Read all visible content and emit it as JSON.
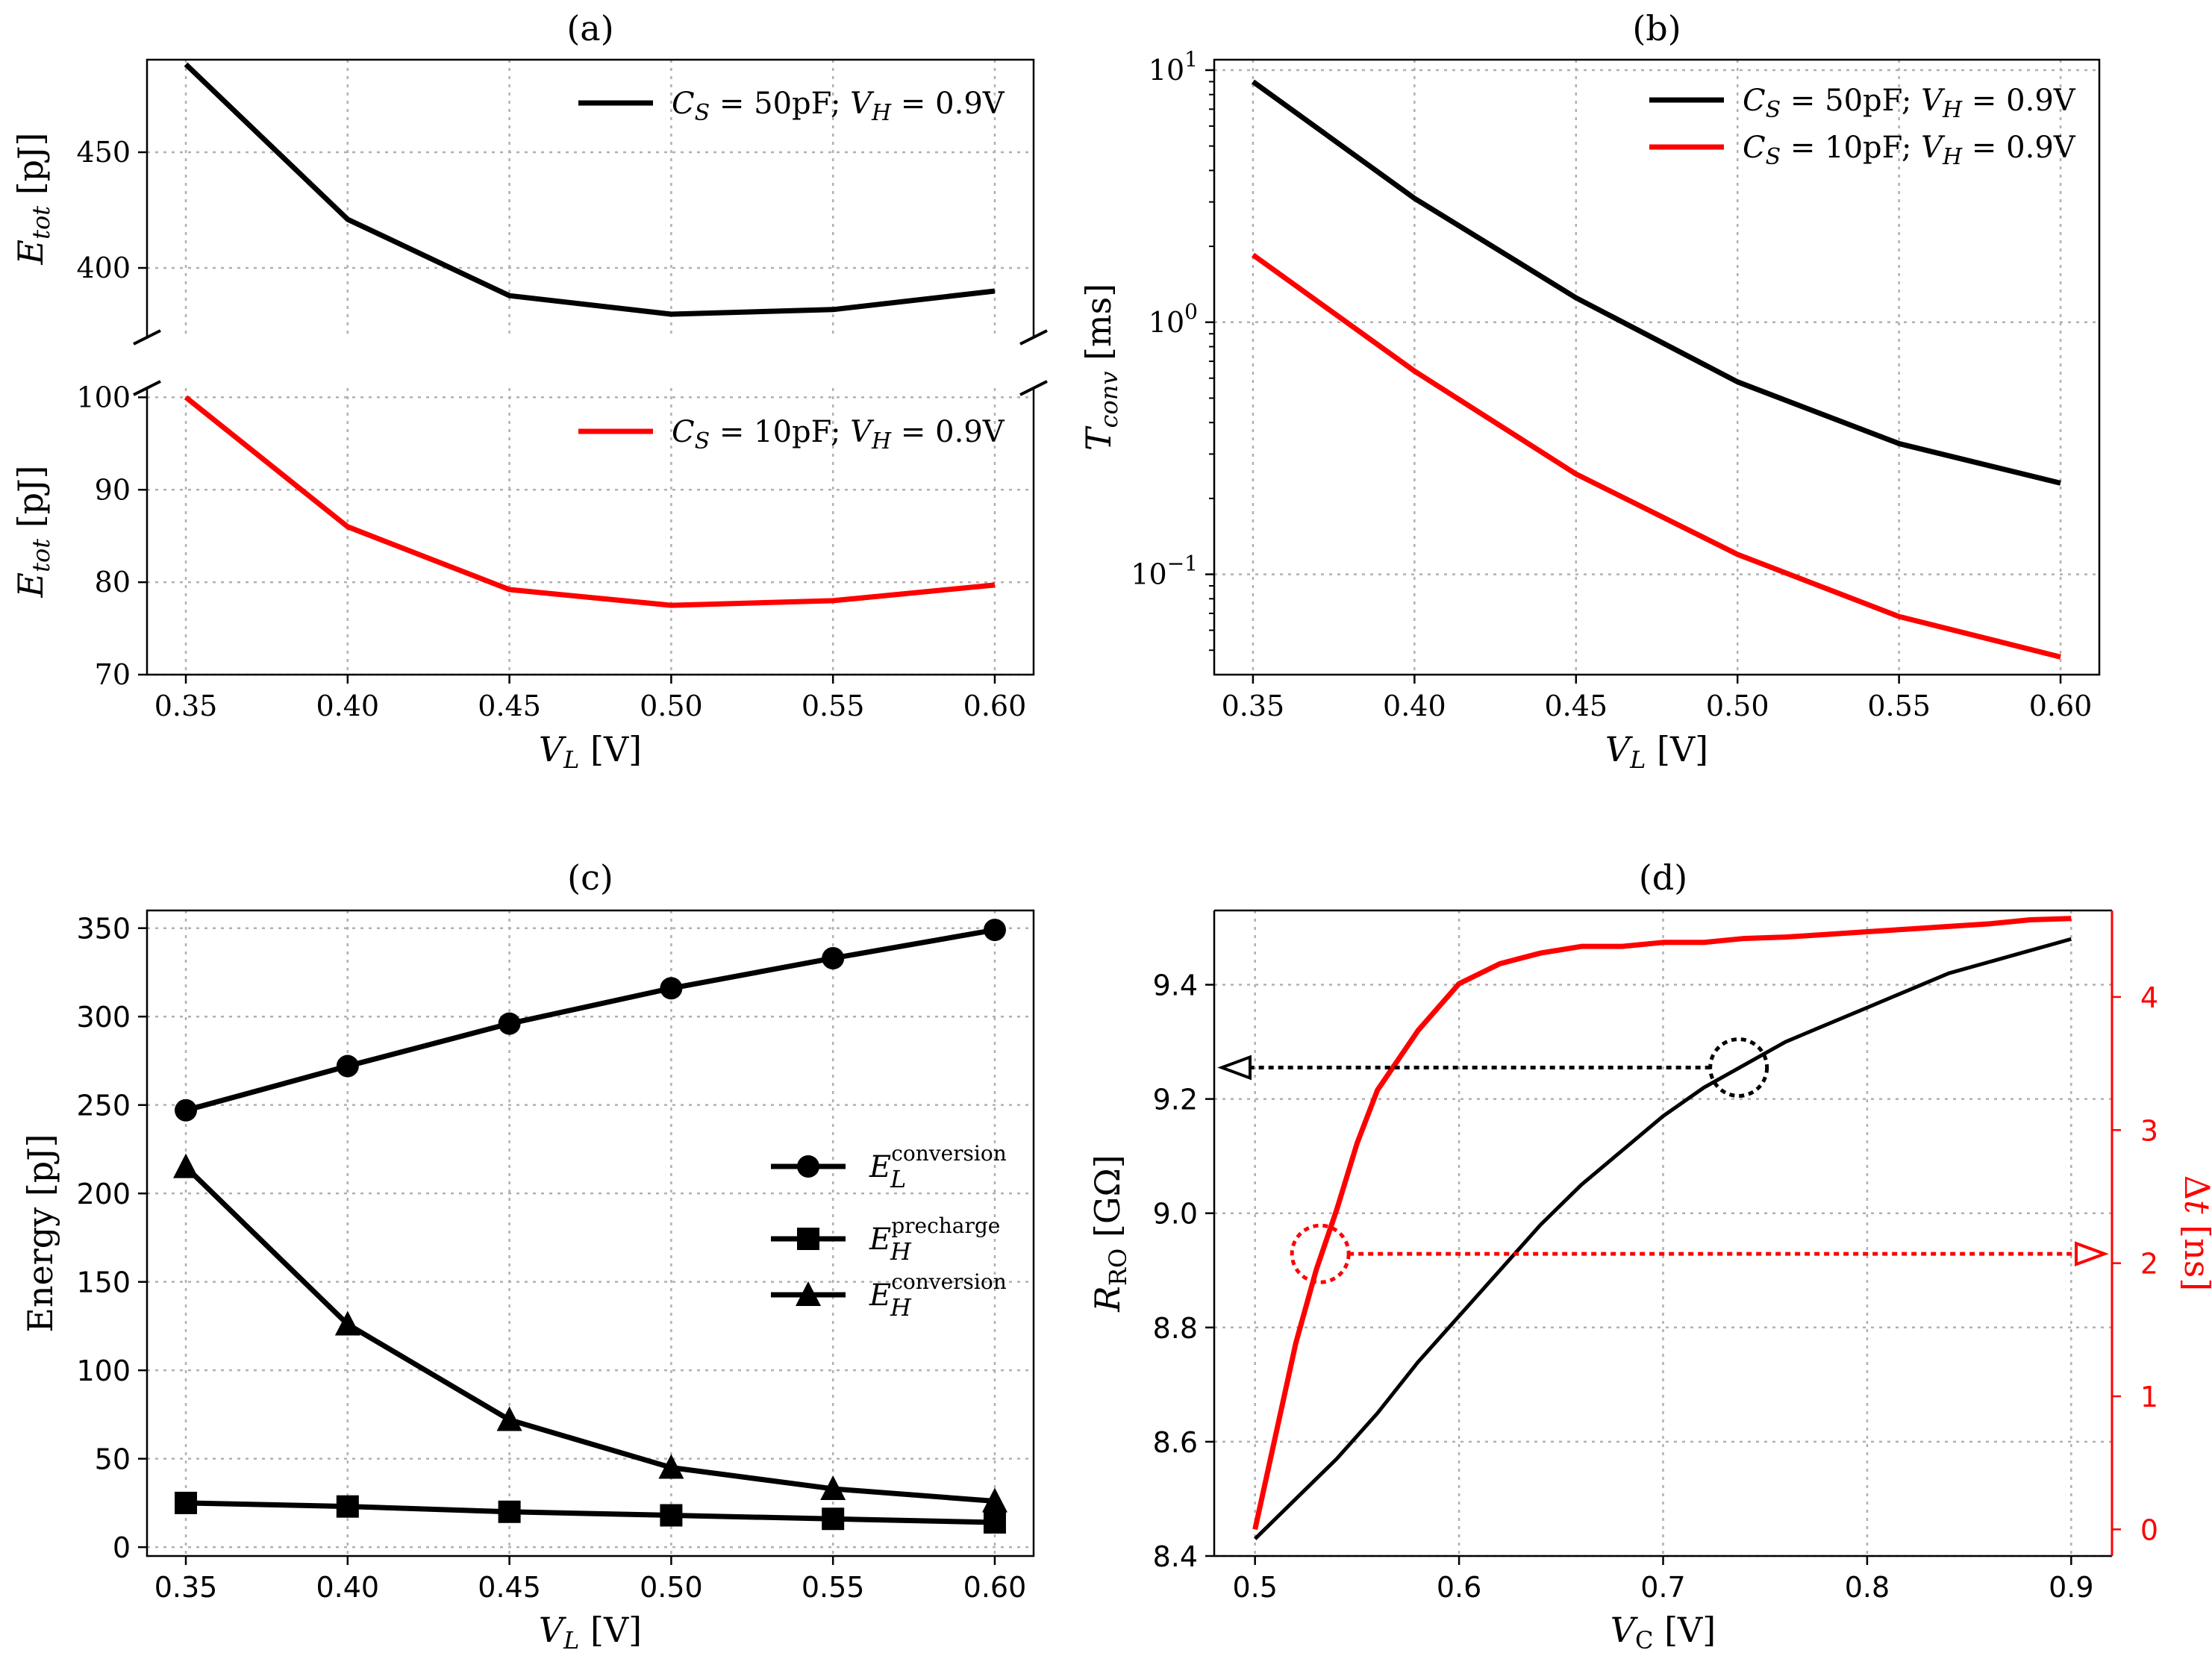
{
  "chart_data": [
    {
      "panel": "a",
      "type": "line",
      "title": "(a)",
      "xlabel": "V_L [V]",
      "x": [
        0.35,
        0.4,
        0.45,
        0.5,
        0.55,
        0.6
      ],
      "x_ticks": [
        "0.35",
        "0.40",
        "0.45",
        "0.50",
        "0.55",
        "0.60"
      ],
      "broken_axis": true,
      "upper": {
        "ylabel": "E_tot [pJ]",
        "ylim": [
          370,
          490
        ],
        "y_ticks": [
          400,
          450
        ],
        "series": [
          {
            "name": "C_S = 50pF; V_H = 0.9V",
            "color": "#000000",
            "values": [
              488,
              421,
              388,
              380,
              382,
              390
            ]
          }
        ]
      },
      "lower": {
        "ylabel": "E_tot [pJ]",
        "ylim": [
          70,
          101
        ],
        "y_ticks": [
          70,
          80,
          90,
          100
        ],
        "series": [
          {
            "name": "C_S = 10pF; V_H = 0.9V",
            "color": "#ff0000",
            "values": [
              100,
              86,
              79.2,
              77.5,
              78,
              79.7
            ]
          }
        ]
      }
    },
    {
      "panel": "b",
      "type": "line",
      "title": "(b)",
      "xlabel": "V_L [V]",
      "ylabel": "T_conv [ms]",
      "yscale": "log",
      "ylim": [
        0.04,
        11
      ],
      "x": [
        0.35,
        0.4,
        0.45,
        0.5,
        0.55,
        0.6
      ],
      "x_ticks": [
        "0.35",
        "0.40",
        "0.45",
        "0.50",
        "0.55",
        "0.60"
      ],
      "y_ticks": [
        {
          "value": 10,
          "base": "10",
          "exp": "1"
        },
        {
          "value": 1,
          "base": "10",
          "exp": "0"
        },
        {
          "value": 0.1,
          "base": "10",
          "exp": "−1"
        }
      ],
      "series": [
        {
          "name": "C_S = 50pF; V_H = 0.9V",
          "color": "#000000",
          "values": [
            9,
            3.1,
            1.25,
            0.58,
            0.33,
            0.23
          ]
        },
        {
          "name": "C_S = 10pF; V_H = 0.9V",
          "color": "#ff0000",
          "values": [
            1.85,
            0.64,
            0.25,
            0.12,
            0.068,
            0.047
          ]
        }
      ]
    },
    {
      "panel": "c",
      "type": "line",
      "title": "(c)",
      "xlabel": "V_L [V]",
      "ylabel": "Energy [pJ]",
      "ylim": [
        -5,
        360
      ],
      "x": [
        0.35,
        0.4,
        0.45,
        0.5,
        0.55,
        0.6
      ],
      "x_ticks": [
        "0.35",
        "0.40",
        "0.45",
        "0.50",
        "0.55",
        "0.60"
      ],
      "y_ticks": [
        0,
        50,
        100,
        150,
        200,
        250,
        300,
        350
      ],
      "series": [
        {
          "name": "E_L^conversion",
          "base": "E",
          "sub": "L",
          "sup": "conversion",
          "marker": "circle",
          "values": [
            247,
            272,
            296,
            316,
            333,
            349
          ]
        },
        {
          "name": "E_H^precharge",
          "base": "E",
          "sub": "H",
          "sup": "precharge",
          "marker": "square",
          "values": [
            25,
            23,
            20,
            18,
            16,
            14
          ]
        },
        {
          "name": "E_H^conversion",
          "base": "E",
          "sub": "H",
          "sup": "conversion",
          "marker": "triangle",
          "values": [
            215,
            126,
            72,
            45,
            33,
            26
          ]
        }
      ]
    },
    {
      "panel": "d",
      "type": "line",
      "title": "(d)",
      "xlabel": "V_C [V]",
      "x_ticks": [
        "0.5",
        "0.6",
        "0.7",
        "0.8",
        "0.9"
      ],
      "x_tick_values": [
        0.5,
        0.6,
        0.7,
        0.8,
        0.9
      ],
      "xlim": [
        0.48,
        0.92
      ],
      "left_axis": {
        "ylabel": "R_RO [GΩ]",
        "ylim": [
          8.4,
          9.53
        ],
        "y_ticks": [
          "8.4",
          "8.6",
          "8.8",
          "9.0",
          "9.2",
          "9.4"
        ],
        "y_tick_values": [
          8.4,
          8.6,
          8.8,
          9.0,
          9.2,
          9.4
        ],
        "color": "#000000",
        "series": {
          "x": [
            0.5,
            0.52,
            0.54,
            0.56,
            0.58,
            0.6,
            0.62,
            0.64,
            0.66,
            0.68,
            0.7,
            0.72,
            0.74,
            0.76,
            0.78,
            0.8,
            0.82,
            0.84,
            0.86,
            0.88,
            0.9
          ],
          "values": [
            8.43,
            8.5,
            8.57,
            8.65,
            8.74,
            8.82,
            8.9,
            8.98,
            9.05,
            9.11,
            9.17,
            9.22,
            9.26,
            9.3,
            9.33,
            9.36,
            9.39,
            9.42,
            9.44,
            9.46,
            9.48
          ]
        }
      },
      "right_axis": {
        "ylabel": "Δt [ns]",
        "ylim": [
          -0.2,
          4.65
        ],
        "y_ticks": [
          "0",
          "1",
          "2",
          "3",
          "4"
        ],
        "y_tick_values": [
          0,
          1,
          2,
          3,
          4
        ],
        "color": "#ff0000",
        "series": {
          "x": [
            0.5,
            0.51,
            0.52,
            0.53,
            0.54,
            0.55,
            0.56,
            0.58,
            0.6,
            0.62,
            0.64,
            0.66,
            0.68,
            0.7,
            0.72,
            0.74,
            0.76,
            0.78,
            0.8,
            0.82,
            0.84,
            0.86,
            0.88,
            0.9
          ],
          "values": [
            0,
            0.7,
            1.4,
            1.95,
            2.4,
            2.9,
            3.3,
            3.75,
            4.1,
            4.25,
            4.33,
            4.38,
            4.38,
            4.41,
            4.41,
            4.44,
            4.45,
            4.47,
            4.49,
            4.51,
            4.53,
            4.55,
            4.58,
            4.59
          ]
        }
      },
      "annotations": [
        {
          "type": "circle-arrow",
          "axis": "left",
          "x": 0.737,
          "y": 9.255,
          "direction": "left"
        },
        {
          "type": "circle-arrow",
          "axis": "right",
          "x": 0.532,
          "y": 2.07,
          "direction": "right"
        }
      ]
    }
  ]
}
